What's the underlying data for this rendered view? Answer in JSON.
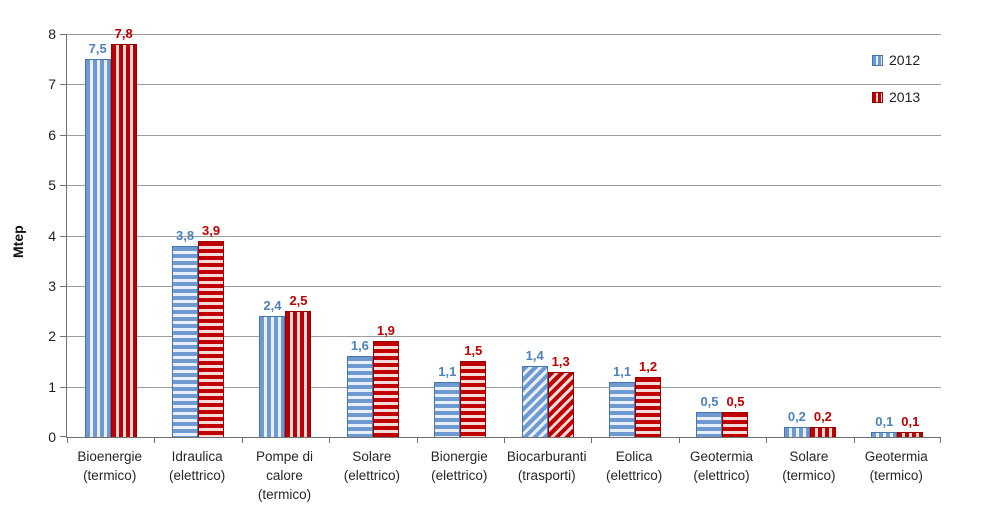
{
  "chart_data": {
    "type": "bar",
    "title": "",
    "xlabel": "",
    "ylabel": "Mtep",
    "ylim": [
      0,
      8
    ],
    "ytick_interval": 1,
    "grid": true,
    "legend_position": "top-right",
    "decimal_separator": ",",
    "categories": [
      [
        "Bioenergie",
        "(termico)"
      ],
      [
        "Idraulica",
        "(elettrico)"
      ],
      [
        "Pompe di",
        "calore",
        "(termico)"
      ],
      [
        "Solare",
        "(elettrico)"
      ],
      [
        "Bionergie",
        "(elettrico)"
      ],
      [
        "Biocarburanti",
        "(trasporti)"
      ],
      [
        "Eolica",
        "(elettrico)"
      ],
      [
        "Geotermia",
        "(elettrico)"
      ],
      [
        "Solare",
        "(termico)"
      ],
      [
        "Geotermia",
        "(termico)"
      ]
    ],
    "category_patterns": [
      "vertical",
      "horizontal",
      "vertical",
      "horizontal",
      "horizontal",
      "diagonal",
      "horizontal",
      "horizontal",
      "vertical",
      "vertical"
    ],
    "series": [
      {
        "name": "2012",
        "values": [
          7.5,
          3.8,
          2.4,
          1.6,
          1.1,
          1.4,
          1.1,
          0.5,
          0.2,
          0.1
        ],
        "labels": [
          "7,5",
          "3,8",
          "2,4",
          "1,6",
          "1,1",
          "1,4",
          "1,1",
          "0,5",
          "0,2",
          "0,1"
        ],
        "main_color": "#6f9ad1",
        "stripe_color": "#e9eff8",
        "border_color": "#4576ad",
        "label_color": "#4f81bd"
      },
      {
        "name": "2013",
        "values": [
          7.8,
          3.9,
          2.5,
          1.9,
          1.5,
          1.3,
          1.2,
          0.5,
          0.2,
          0.1
        ],
        "labels": [
          "7,8",
          "3,9",
          "2,5",
          "1,9",
          "1,5",
          "1,3",
          "1,2",
          "0,5",
          "0,2",
          "0,1"
        ],
        "main_color": "#c00000",
        "stripe_color": "#f2dbda",
        "border_color": "#9a0000",
        "label_color": "#c00000"
      }
    ]
  },
  "y_axis": {
    "title": "Mtep",
    "ticks": [
      "0",
      "1",
      "2",
      "3",
      "4",
      "5",
      "6",
      "7",
      "8"
    ]
  },
  "legend": {
    "items": [
      {
        "label": "2012"
      },
      {
        "label": "2013"
      }
    ]
  }
}
